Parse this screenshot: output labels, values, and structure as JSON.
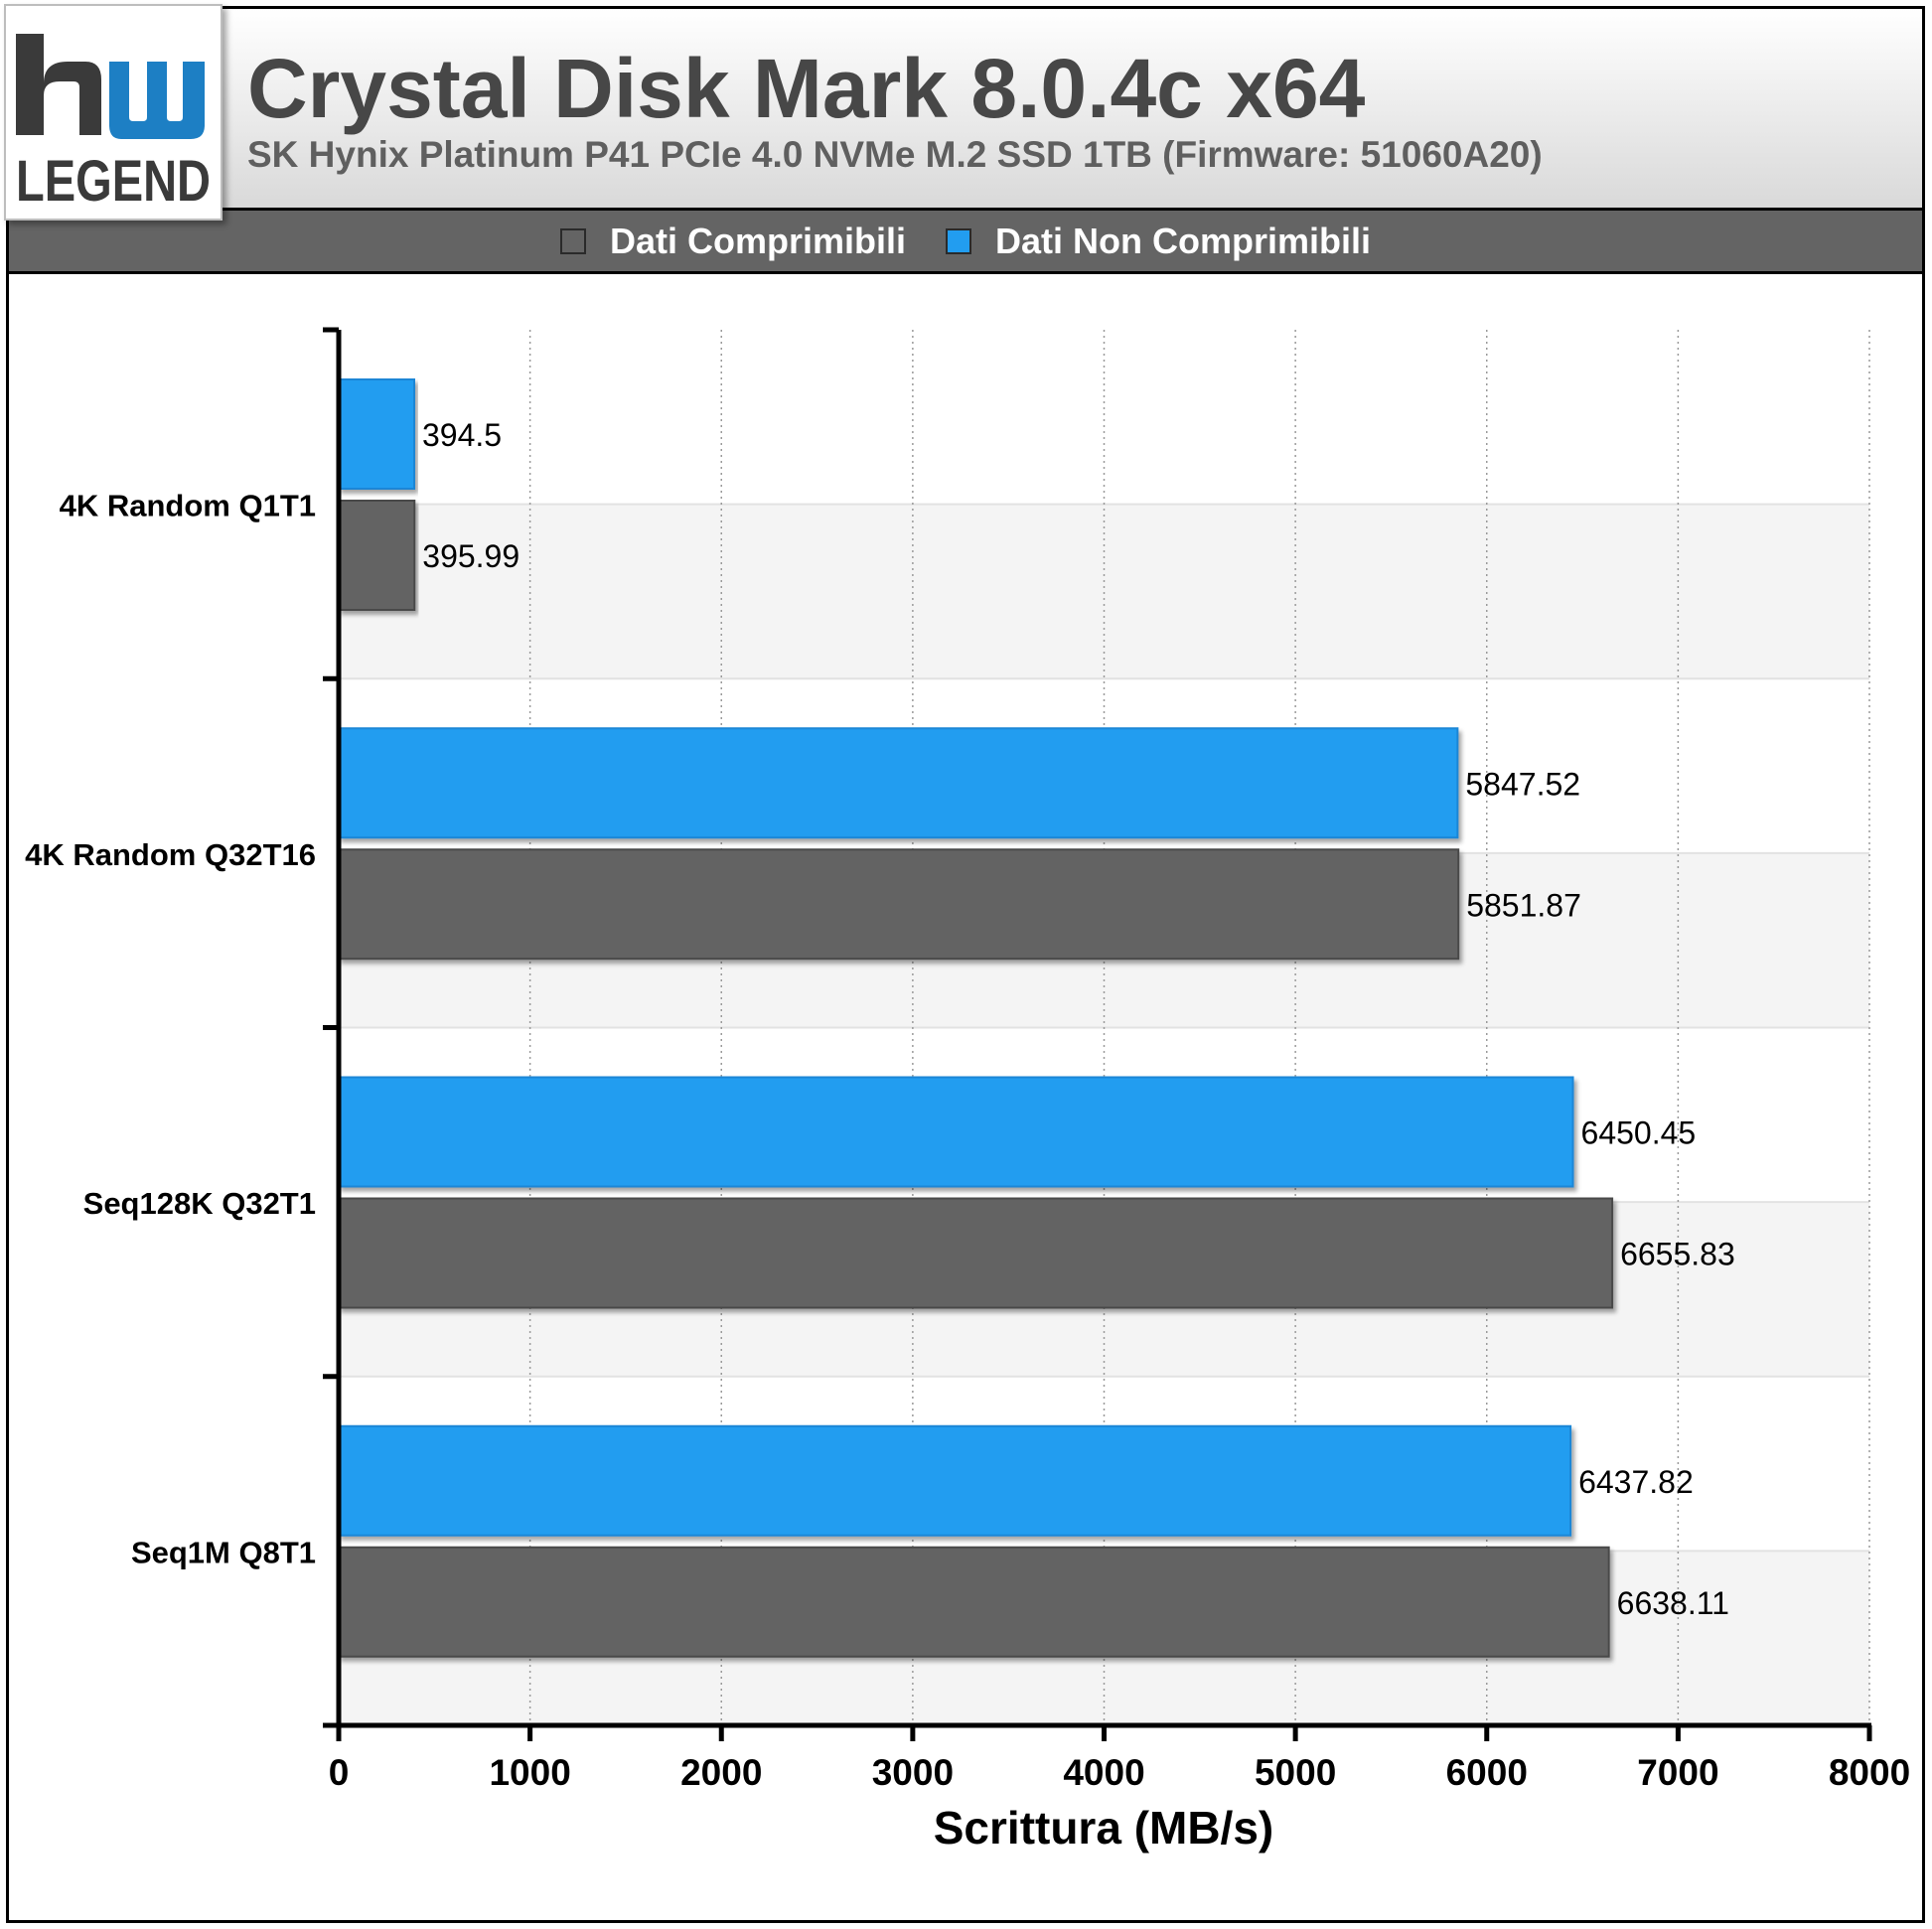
{
  "header": {
    "title": "Crystal Disk Mark 8.0.4c x64",
    "subtitle": "SK Hynix Platinum P41 PCIe 4.0 NVMe M.2 SSD 1TB (Firmware: 51060A20)"
  },
  "logo": {
    "top_text": "hw",
    "bottom_text": "LEGEND",
    "colors": {
      "blue": "#1d7fc4",
      "dark": "#3a3a3a"
    }
  },
  "legend": {
    "items": [
      {
        "label": "Dati Comprimibili",
        "color": "#646464"
      },
      {
        "label": "Dati Non Comprimibili",
        "color": "#229df0"
      }
    ],
    "placement": "top-center"
  },
  "chart_data": {
    "type": "bar",
    "orientation": "horizontal",
    "categories": [
      "4K Random Q1T1",
      "4K Random Q32T16",
      "Seq128K Q32T1",
      "Seq1M Q8T1"
    ],
    "series": [
      {
        "name": "Dati Non Comprimibili",
        "color": "#229df0",
        "values": [
          394.5,
          5847.52,
          6450.45,
          6437.82
        ]
      },
      {
        "name": "Dati Comprimibili",
        "color": "#646464",
        "values": [
          395.99,
          5851.87,
          6655.83,
          6638.11
        ]
      }
    ],
    "value_labels": {
      "Dati Non Comprimibili": [
        "394.5",
        "5847.52",
        "6450.45",
        "6437.82"
      ],
      "Dati Comprimibili": [
        "395.99",
        "5851.87",
        "6655.83",
        "6638.11"
      ]
    },
    "title": "Crystal Disk Mark 8.0.4c x64",
    "xlabel": "Scrittura (MB/s)",
    "ylabel": "",
    "xlim": [
      0,
      8000
    ],
    "xticks": [
      0,
      1000,
      2000,
      3000,
      4000,
      5000,
      6000,
      7000,
      8000
    ],
    "xtick_labels": [
      "0",
      "1000",
      "2000",
      "3000",
      "4000",
      "5000",
      "6000",
      "7000",
      "8000"
    ],
    "grid": true,
    "grid_style": "dotted-vertical"
  }
}
